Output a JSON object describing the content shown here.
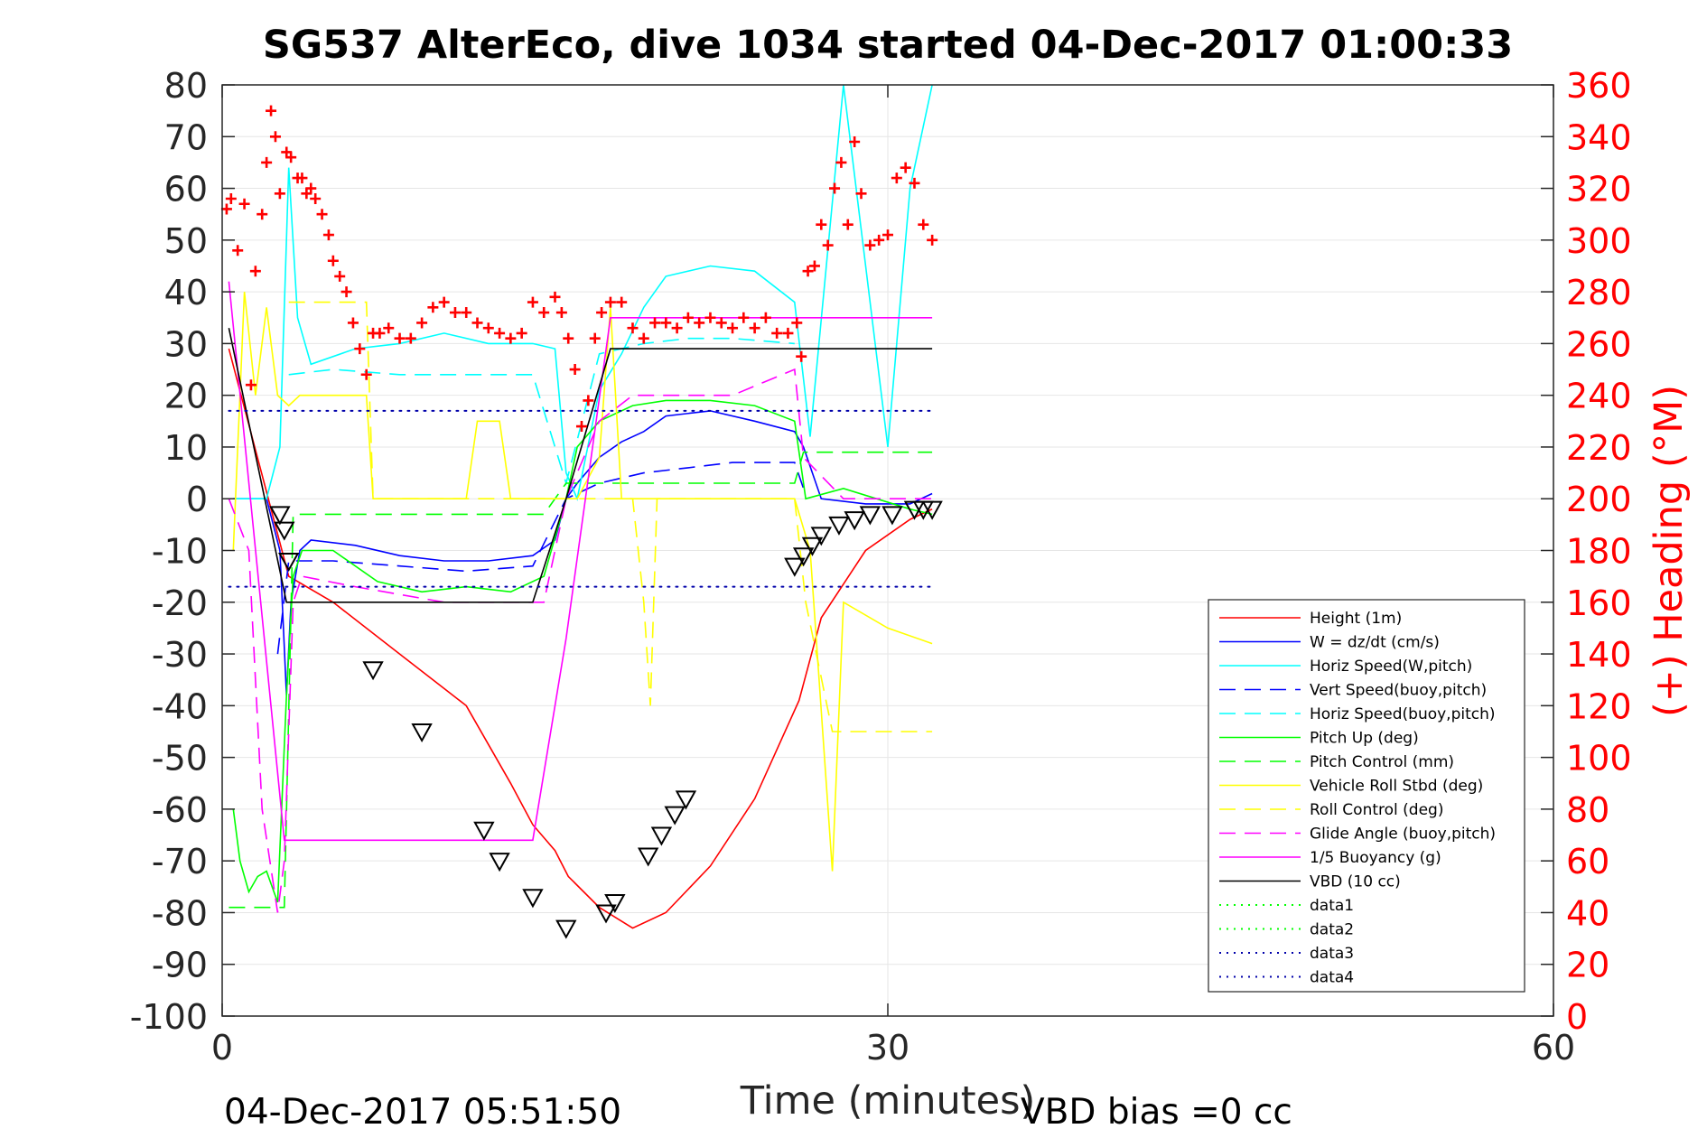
{
  "chart_data": {
    "type": "line",
    "title": "SG537 AlterEco, dive 1034 started 04-Dec-2017 01:00:33",
    "xlabel": "Time (minutes)",
    "ylabel_right": "(+) Heading (°M)",
    "footer_left": "04-Dec-2017 05:51:50",
    "footer_right": "VBD bias =0 cc",
    "xlim": [
      0,
      60
    ],
    "ylim": [
      -100,
      80
    ],
    "ylim_right": [
      0,
      360
    ],
    "xticks": [
      "0",
      "30",
      "60"
    ],
    "yticks": [
      "80",
      "70",
      "60",
      "50",
      "40",
      "30",
      "20",
      "10",
      "0",
      "-10",
      "-20",
      "-30",
      "-40",
      "-50",
      "-60",
      "-70",
      "-80",
      "-90",
      "-100"
    ],
    "yticks_right": [
      "360",
      "340",
      "320",
      "300",
      "280",
      "260",
      "240",
      "220",
      "200",
      "180",
      "160",
      "140",
      "120",
      "100",
      "80",
      "60",
      "40",
      "20",
      "0"
    ],
    "grid": true,
    "legend_position": "bottom-right",
    "colors": {
      "height": "#ff0000",
      "w": "#0000ff",
      "horiz": "#00ffff",
      "pitch": "#00ff00",
      "roll": "#ffff00",
      "buoy": "#ff00ff",
      "vbd": "#000000",
      "heading": "#ff0000",
      "data3": "#0000aa",
      "grid": "#e6e6e6",
      "axis": "#262626"
    },
    "series": [
      {
        "name": "Height (1m)",
        "style": "solid",
        "color": "#ff0000",
        "x": [
          0.3,
          3.0,
          5,
          8,
          11,
          13,
          14,
          15,
          15.6,
          17,
          18.5,
          20,
          22,
          24,
          26,
          27,
          29,
          31,
          32
        ],
        "y": [
          29,
          -15,
          -20,
          -30,
          -40,
          -55,
          -63,
          -68,
          -73,
          -79,
          -83,
          -80,
          -71,
          -58,
          -39,
          -23,
          -10,
          -4,
          -2
        ]
      },
      {
        "name": "W = dz/dt (cm/s)",
        "style": "solid",
        "color": "#0000ff",
        "x": [
          0.5,
          2,
          2.6,
          2.9,
          3.1,
          3.5,
          4,
          6,
          8,
          10,
          12,
          14,
          15,
          15.5,
          16,
          17,
          18,
          19,
          20,
          22,
          24,
          25.8,
          26.2,
          27,
          29,
          31,
          32
        ],
        "y": [
          0,
          0,
          -10,
          -38,
          -20,
          -10,
          -8,
          -9,
          -11,
          -12,
          -12,
          -11,
          -8,
          0,
          3,
          8,
          11,
          13,
          16,
          17,
          15,
          13,
          10,
          0,
          -1,
          -1,
          1
        ]
      },
      {
        "name": "Horiz Speed(W,pitch)",
        "style": "solid",
        "color": "#00ffff",
        "x": [
          0.5,
          2,
          2.6,
          3.0,
          3.4,
          4,
          6,
          8,
          10,
          12,
          13,
          14,
          15,
          15.5,
          16,
          17,
          18,
          19,
          20,
          22,
          24,
          25.8,
          26.5,
          28,
          30,
          31,
          32
        ],
        "y": [
          0,
          0,
          10,
          64,
          35,
          26,
          29,
          30,
          32,
          30,
          30,
          30,
          29,
          5,
          0,
          21,
          28,
          37,
          43,
          45,
          44,
          38,
          12,
          80,
          10,
          60,
          80
        ]
      },
      {
        "name": "Vert Speed(buoy,pitch)",
        "style": "dashed",
        "color": "#0000ff",
        "x": [
          2.5,
          3,
          5,
          8,
          11,
          14,
          15.5,
          17,
          19,
          21,
          23,
          25.8,
          26.2
        ],
        "y": [
          -30,
          -12,
          -12,
          -13,
          -14,
          -13,
          0,
          3,
          5,
          6,
          7,
          7,
          2
        ]
      },
      {
        "name": "Horiz Speed(buoy,pitch)",
        "style": "dashed",
        "color": "#00ffff",
        "x": [
          3,
          5,
          8,
          11,
          14,
          15.5,
          17,
          19,
          21,
          23,
          25.8
        ],
        "y": [
          24,
          25,
          24,
          24,
          24,
          3,
          28,
          30,
          31,
          31,
          30
        ]
      },
      {
        "name": "Pitch Up (deg)",
        "style": "solid",
        "color": "#00ff00",
        "x": [
          0.5,
          0.8,
          1.2,
          1.6,
          2.0,
          2.5,
          2.9,
          3.2,
          3.6,
          5,
          7,
          9,
          11,
          13,
          14.5,
          15.5,
          16,
          17,
          18.5,
          20,
          22,
          24,
          25.8,
          26.3,
          28,
          31,
          32
        ],
        "y": [
          -60,
          -70,
          -76,
          -73,
          -72,
          -78,
          -38,
          -15,
          -10,
          -10,
          -16,
          -18,
          -17,
          -18,
          -15,
          0,
          10,
          15,
          18,
          19,
          19,
          18,
          15,
          0,
          2,
          -2,
          -3
        ]
      },
      {
        "name": "Pitch Control (mm)",
        "style": "dashed",
        "color": "#00ff00",
        "x": [
          0.3,
          2.8,
          3.2,
          6,
          10,
          14.5,
          15.5,
          18.5,
          25.8,
          26.2,
          32
        ],
        "y": [
          -79,
          -79,
          -3,
          -3,
          -3,
          -3,
          3,
          3,
          3,
          9,
          9
        ]
      },
      {
        "name": "Vehicle Roll Stbd (deg)",
        "style": "solid",
        "color": "#ffff00",
        "x": [
          0.5,
          1.0,
          1.5,
          2.0,
          2.5,
          3.0,
          3.5,
          5,
          6.5,
          6.8,
          9,
          11,
          11.5,
          12.5,
          13,
          15,
          16,
          17,
          17.5,
          18,
          19,
          20,
          23,
          25.8,
          26.5,
          27.5,
          28,
          30,
          32
        ],
        "y": [
          -10,
          40,
          20,
          37,
          20,
          18,
          20,
          20,
          20,
          0,
          0,
          0,
          15,
          15,
          0,
          0,
          0,
          8,
          37,
          0,
          0,
          0,
          0,
          0,
          -10,
          -72,
          -20,
          -25,
          -28
        ]
      },
      {
        "name": "Roll Control (deg)",
        "style": "dashed",
        "color": "#ffff00",
        "x": [
          3,
          6.5,
          6.8,
          18.5,
          19,
          19.3,
          19.6,
          25.8,
          26.3,
          27.5,
          32
        ],
        "y": [
          38,
          38,
          0,
          0,
          -20,
          -40,
          0,
          0,
          -20,
          -45,
          -45
        ]
      },
      {
        "name": "Glide Angle (buoy,pitch)",
        "style": "dashed",
        "color": "#ff00ff",
        "x": [
          0.3,
          1.2,
          1.8,
          2.5,
          2.8,
          3.2,
          3.6,
          6,
          10,
          13,
          14.5,
          15.5,
          17,
          18.5,
          20,
          23,
          25.8,
          26.2,
          28,
          31,
          32
        ],
        "y": [
          0,
          -10,
          -60,
          -80,
          -70,
          -20,
          -15,
          -17,
          -20,
          -20,
          -20,
          0,
          15,
          20,
          20,
          20,
          25,
          8,
          0,
          0,
          0
        ]
      },
      {
        "name": "1/5 Buoyancy (g)",
        "style": "solid",
        "color": "#ff00ff",
        "x": [
          0.3,
          2.8,
          3.1,
          8,
          13.5,
          14.0,
          15.5,
          17.5,
          18.5,
          25.8,
          32
        ],
        "y": [
          42,
          -66,
          -66,
          -66,
          -66,
          -66,
          -27,
          35,
          35,
          35,
          35
        ]
      },
      {
        "name": "VBD (10 cc)",
        "style": "solid",
        "color": "#000000",
        "x": [
          0.3,
          2.9,
          3.0,
          14.0,
          15.5,
          17.5,
          18.5,
          25.8,
          32
        ],
        "y": [
          33,
          -20,
          -20,
          -20,
          0,
          29,
          29,
          29,
          29
        ]
      },
      {
        "name": "data1",
        "style": "dotted",
        "color": "#00ff00",
        "x": [],
        "y": []
      },
      {
        "name": "data2",
        "style": "dotted",
        "color": "#00ff00",
        "x": [],
        "y": []
      },
      {
        "name": "data3",
        "style": "dotted",
        "color": "#0000aa",
        "x": [
          0.3,
          32
        ],
        "y": [
          17,
          17
        ]
      },
      {
        "name": "data4",
        "style": "dotted",
        "color": "#0000aa",
        "x": [
          0.3,
          32
        ],
        "y": [
          -17,
          -17
        ]
      }
    ],
    "depth_markers": {
      "x": [
        2.6,
        2.8,
        3.0,
        6.8,
        9.0,
        11.8,
        12.5,
        14.0,
        15.5,
        17.3,
        17.7,
        19.2,
        19.8,
        20.4,
        20.9,
        25.8,
        26.2,
        26.6,
        27.0,
        27.8,
        28.5,
        29.2,
        30.2,
        31.2,
        31.6,
        32.0
      ],
      "y": [
        -3,
        -6,
        -12,
        -33,
        -45,
        -64,
        -70,
        -77,
        -83,
        -80,
        -78,
        -69,
        -65,
        -61,
        -58,
        -13,
        -11,
        -9,
        -7,
        -5,
        -4,
        -3,
        -3,
        -2,
        -2,
        -2
      ]
    },
    "heading": {
      "name": "Heading",
      "marker": "+",
      "color": "#ff0000",
      "x": [
        0.2,
        0.4,
        0.7,
        1.0,
        1.3,
        1.5,
        1.8,
        2.0,
        2.2,
        2.4,
        2.6,
        2.9,
        3.1,
        3.4,
        3.6,
        3.8,
        4.0,
        4.2,
        4.5,
        4.8,
        5.0,
        5.3,
        5.6,
        5.9,
        6.2,
        6.5,
        6.8,
        7.1,
        7.5,
        8.0,
        8.5,
        9.0,
        9.5,
        10.0,
        10.5,
        11.0,
        11.5,
        12.0,
        12.5,
        13.0,
        13.5,
        14.0,
        14.5,
        15.0,
        15.3,
        15.6,
        15.9,
        16.2,
        16.5,
        16.8,
        17.1,
        17.5,
        18.0,
        18.5,
        19.0,
        19.5,
        20.0,
        20.5,
        21.0,
        21.5,
        22.0,
        22.5,
        23.0,
        23.5,
        24.0,
        24.5,
        25.0,
        25.5,
        25.9,
        26.1,
        26.4,
        26.7,
        27.0,
        27.3,
        27.6,
        27.9,
        28.2,
        28.5,
        28.8,
        29.2,
        29.6,
        30.0,
        30.4,
        30.8,
        31.2,
        31.6,
        32.0
      ],
      "y": [
        312,
        316,
        296,
        314,
        244,
        288,
        310,
        330,
        350,
        340,
        318,
        334,
        332,
        324,
        324,
        318,
        320,
        316,
        310,
        302,
        292,
        286,
        280,
        268,
        258,
        248,
        264,
        264,
        266,
        262,
        262,
        268,
        274,
        276,
        272,
        272,
        268,
        266,
        264,
        262,
        264,
        276,
        272,
        278,
        272,
        262,
        250,
        228,
        238,
        262,
        272,
        276,
        276,
        266,
        262,
        268,
        268,
        266,
        270,
        268,
        270,
        268,
        266,
        270,
        266,
        270,
        264,
        264,
        268,
        255,
        288,
        290,
        306,
        298,
        320,
        330,
        306,
        338,
        318,
        298,
        300,
        302,
        324,
        328,
        322,
        306,
        300
      ]
    }
  }
}
